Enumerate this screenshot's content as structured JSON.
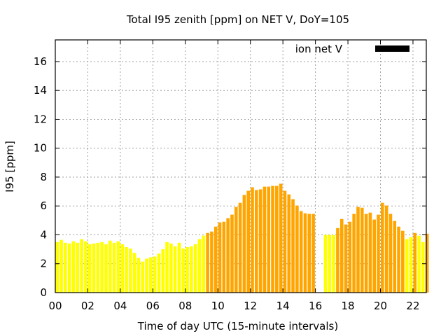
{
  "chart_data": {
    "type": "bar",
    "title": "Total I95 zenith [ppm] on NET V, DoY=105",
    "xlabel": "Time of day UTC (15-minute intervals)",
    "ylabel": "I95 [ppm]",
    "xlim": [
      0,
      22.82
    ],
    "ylim": [
      0,
      17.5
    ],
    "grid": true,
    "x_ticks": [
      0,
      2,
      4,
      6,
      8,
      10,
      12,
      14,
      16,
      18,
      20,
      22
    ],
    "x_tick_labels": [
      "00",
      "02",
      "04",
      "06",
      "08",
      "10",
      "12",
      "14",
      "16",
      "18",
      "20",
      "22"
    ],
    "y_ticks": [
      0,
      2,
      4,
      6,
      8,
      10,
      12,
      14,
      16
    ],
    "y_tick_labels": [
      "0",
      "2",
      "4",
      "6",
      "8",
      "10",
      "12",
      "14",
      "16"
    ],
    "legend": {
      "label": "ion net V",
      "placement": "top-right",
      "color": "#000000"
    },
    "color_threshold": 4.05,
    "colors": {
      "low": "#ffff00",
      "high": "#ffa500"
    },
    "bar_interval_hours": 0.25,
    "series": [
      {
        "name": "ion net V",
        "start_hour": 0,
        "values": [
          3.5,
          3.65,
          3.45,
          3.4,
          3.55,
          3.45,
          3.7,
          3.55,
          3.35,
          3.4,
          3.45,
          3.5,
          3.35,
          3.6,
          3.45,
          3.55,
          3.35,
          3.15,
          3.05,
          2.75,
          2.4,
          2.15,
          2.35,
          2.45,
          2.5,
          2.7,
          3.0,
          3.5,
          3.4,
          3.2,
          3.45,
          3.05,
          3.15,
          3.2,
          3.35,
          3.7,
          3.95,
          4.13,
          4.23,
          4.57,
          4.86,
          4.91,
          5.15,
          5.4,
          5.93,
          6.22,
          6.76,
          7.05,
          7.29,
          7.1,
          7.15,
          7.34,
          7.34,
          7.39,
          7.39,
          7.54,
          7.05,
          6.8,
          6.47,
          6.03,
          5.64,
          5.49,
          5.45,
          5.45
        ]
      },
      {
        "name": "ion net V",
        "start_hour": 16.5,
        "values": [
          3.99,
          3.99,
          3.99,
          4.47,
          5.1,
          4.72,
          4.91,
          5.45,
          5.93,
          5.88,
          5.45,
          5.54,
          5.06,
          5.4,
          6.22,
          6.03,
          5.45,
          4.96,
          4.57,
          4.28,
          3.7,
          3.84,
          4.13,
          3.94,
          3.5,
          4.08
        ]
      }
    ]
  }
}
